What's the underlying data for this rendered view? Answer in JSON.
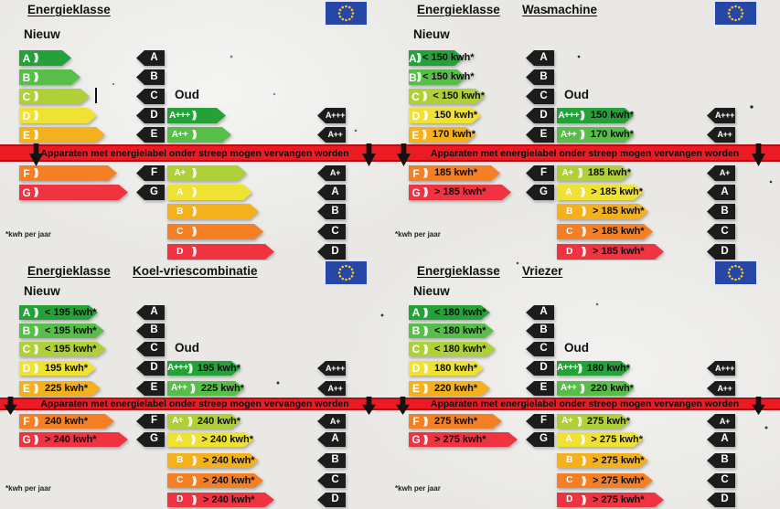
{
  "poster": {
    "common": {
      "title": "Energieklasse",
      "new_label": "Nieuw",
      "old_label": "Oud",
      "band_text": "Apparaten met energielabel onder streep mogen vervangen worden",
      "footnote": "*kwh per jaar"
    },
    "icons": {
      "flag": "eu-flag-icon",
      "band_arrow": "down-arrow-icon",
      "cut_mark": "cut-mark-icon"
    },
    "colors": {
      "grades": [
        "#25A13A",
        "#57BE4A",
        "#AFD036",
        "#EFE233",
        "#F5B01E",
        "#F57F24",
        "#EF3340"
      ],
      "black": "#1C1C1C",
      "band": "#EC1B23",
      "band_edge": "#B30D15",
      "eu_blue": "#2646A8",
      "star_yellow": "#FFCC00",
      "background": "#E9E8E5"
    },
    "new_grades": [
      "A",
      "B",
      "C",
      "D",
      "E",
      "F",
      "G"
    ],
    "old_grades": [
      "A+++",
      "A++",
      "A+",
      "A",
      "B",
      "C",
      "D"
    ],
    "mid_black_letters": [
      "A",
      "B",
      "C",
      "D",
      "E",
      "F",
      "G"
    ],
    "right_black_letters": [
      "A+++",
      "A++",
      "A+",
      "A",
      "B",
      "C",
      "D"
    ],
    "quadrants": [
      {
        "id": "energieklasse-algemeen",
        "appliance": "",
        "new_values": [
          "",
          "",
          "",
          "",
          "",
          "",
          ""
        ],
        "old_values": [
          "",
          "",
          "",
          "",
          "",
          "",
          ""
        ],
        "new_widths": [
          57,
          67,
          77,
          85,
          94,
          107,
          119
        ],
        "old_widths": [
          64,
          70,
          87,
          93,
          100,
          105,
          117
        ],
        "cursor_artifact": true
      },
      {
        "id": "wasmachine",
        "appliance": "Wasmachine",
        "new_values": [
          "< 150 kwh*",
          "< 150 kwh*",
          "< 150 kwh*",
          "150 kwh*",
          "170 kwh*",
          "185 kwh*",
          "> 185 kwh*"
        ],
        "old_values": [
          "150 kwh*",
          "170 kwh*",
          "185 kwh*",
          "> 185 kwh*",
          "> 185 kwh*",
          "> 185 kwh*",
          "> 185 kwh*"
        ],
        "new_widths": [
          60,
          63,
          83,
          79,
          73,
          100,
          112
        ],
        "old_widths": [
          84,
          84,
          81,
          94,
          100,
          105,
          117
        ],
        "cursor_artifact": false
      },
      {
        "id": "koel-vriescombinatie",
        "appliance": "Koel-vriescombinatie",
        "new_values": [
          "< 195 kwh*",
          "< 195 kwh*",
          "< 195 kwh*",
          "195 kwh*",
          "225 kwh*",
          "240 kwh*",
          "> 240 kwh*"
        ],
        "old_values": [
          "195 kwh*",
          "225 kwh*",
          "240 kwh*",
          "> 240 kwh*",
          "> 240 kwh*",
          "> 240 kwh*",
          "> 240 kwh*"
        ],
        "new_widths": [
          86,
          93,
          95,
          84,
          89,
          104,
          119
        ],
        "old_widths": [
          80,
          84,
          80,
          94,
          100,
          105,
          117
        ],
        "cursor_artifact": false
      },
      {
        "id": "vriezer",
        "appliance": "Vriezer",
        "new_values": [
          "< 180 kwh*",
          "< 180 kwh*",
          "< 180 kwh*",
          "180 kwh*",
          "220 kwh*",
          "275 kwh*",
          "> 275 kwh*"
        ],
        "old_values": [
          "180 kwh*",
          "220 kwh*",
          "275 kwh*",
          "> 275 kwh*",
          "> 275 kwh*",
          "> 275 kwh*",
          "> 275 kwh*"
        ],
        "new_widths": [
          89,
          93,
          95,
          82,
          89,
          102,
          119
        ],
        "old_widths": [
          80,
          84,
          80,
          94,
          100,
          105,
          117
        ],
        "cursor_artifact": false
      }
    ]
  }
}
